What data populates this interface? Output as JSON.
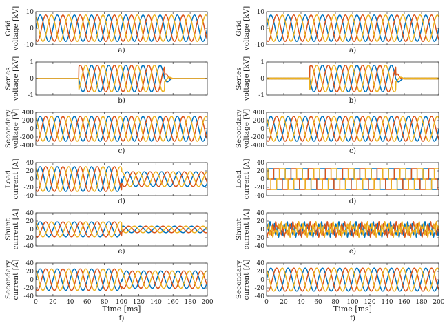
{
  "figure": {
    "x_label": "Time [ms]",
    "x_ticks": [
      "0",
      "20",
      "40",
      "60",
      "80",
      "100",
      "120",
      "140",
      "160",
      "180",
      "200"
    ],
    "colors": {
      "phase_a": "#0072BD",
      "phase_b": "#D95319",
      "phase_c": "#EDB120"
    }
  },
  "chart_data": [
    {
      "type": "line",
      "column": "left",
      "row": 0,
      "caption": "a)",
      "ylabel": [
        "Grid",
        "voltage [kV]"
      ],
      "xlim": [
        0,
        200
      ],
      "ylim": [
        -10,
        10
      ],
      "y_ticks": [
        "10",
        "0",
        "-10"
      ],
      "series": [
        {
          "waveform": "sine",
          "frequency_hz": 50,
          "phase_shift_deg": [
            0,
            -120,
            120
          ],
          "segments": [
            {
              "t": [
                0,
                200
              ],
              "amplitude": 8
            }
          ]
        }
      ]
    },
    {
      "type": "line",
      "column": "left",
      "row": 1,
      "caption": "b)",
      "ylabel": [
        "Series",
        "voltage [kV]"
      ],
      "xlim": [
        0,
        200
      ],
      "ylim": [
        -1,
        1
      ],
      "y_ticks": [
        "1",
        "0",
        "-1"
      ],
      "series": [
        {
          "waveform": "sine",
          "frequency_hz": 50,
          "phase_shift_deg": [
            0,
            -120,
            120
          ],
          "segments": [
            {
              "t": [
                0,
                50
              ],
              "amplitude": 0
            },
            {
              "t": [
                50,
                150
              ],
              "amplitude": 0.8
            },
            {
              "t": [
                150,
                160
              ],
              "amplitude": 0.2,
              "decay_ms": 3
            },
            {
              "t": [
                160,
                200
              ],
              "amplitude": 0
            }
          ]
        }
      ]
    },
    {
      "type": "line",
      "column": "left",
      "row": 2,
      "caption": "c)",
      "ylabel": [
        "Secondary",
        "voltage [V]"
      ],
      "xlim": [
        0,
        200
      ],
      "ylim": [
        -400,
        400
      ],
      "y_ticks": [
        "400",
        "200",
        "0",
        "-200",
        "-400"
      ],
      "series": [
        {
          "waveform": "sine",
          "frequency_hz": 50,
          "phase_shift_deg": [
            0,
            -120,
            120
          ],
          "segments": [
            {
              "t": [
                0,
                200
              ],
              "amplitude": 300
            }
          ]
        }
      ]
    },
    {
      "type": "line",
      "column": "left",
      "row": 3,
      "caption": "d)",
      "ylabel": [
        "Load",
        "current [A]"
      ],
      "xlim": [
        0,
        200
      ],
      "ylim": [
        -40,
        40
      ],
      "y_ticks": [
        "40",
        "20",
        "0",
        "-20",
        "-40"
      ],
      "series": [
        {
          "waveform": "sine",
          "frequency_hz": 50,
          "phase_shift_deg": [
            0,
            -120,
            120
          ],
          "segments": [
            {
              "t": [
                0,
                100
              ],
              "amplitude": 30
            },
            {
              "t": [
                100,
                200
              ],
              "amplitude": 18,
              "phase_jump_deg": -30
            }
          ]
        }
      ]
    },
    {
      "type": "line",
      "column": "left",
      "row": 4,
      "caption": "e)",
      "ylabel": [
        "Shunt",
        "current [A]"
      ],
      "xlim": [
        0,
        200
      ],
      "ylim": [
        -40,
        40
      ],
      "y_ticks": [
        "40",
        "20",
        "0",
        "-20",
        "-40"
      ],
      "series": [
        {
          "waveform": "sine",
          "frequency_hz": 50,
          "phase_shift_deg": [
            0,
            -120,
            120
          ],
          "segments": [
            {
              "t": [
                0,
                100
              ],
              "amplitude": 18
            },
            {
              "t": [
                100,
                200
              ],
              "amplitude": 8,
              "phase_jump_deg": 60
            }
          ]
        }
      ]
    },
    {
      "type": "line",
      "column": "left",
      "row": 5,
      "caption": "f)",
      "ylabel": [
        "Secondary",
        "current [A]"
      ],
      "xlim": [
        0,
        200
      ],
      "ylim": [
        -40,
        40
      ],
      "y_ticks": [
        "40",
        "20",
        "0",
        "-20",
        "-40"
      ],
      "series": [
        {
          "waveform": "sine",
          "frequency_hz": 50,
          "phase_shift_deg": [
            0,
            -120,
            120
          ],
          "segments": [
            {
              "t": [
                0,
                100
              ],
              "amplitude": 26
            },
            {
              "t": [
                100,
                200
              ],
              "amplitude": 21,
              "phase_jump_deg": -15
            }
          ]
        }
      ]
    },
    {
      "type": "line",
      "column": "right",
      "row": 0,
      "caption": "a)",
      "ylabel": [
        "Grid",
        "voltage [kV]"
      ],
      "xlim": [
        0,
        200
      ],
      "ylim": [
        -10,
        10
      ],
      "y_ticks": [
        "10",
        "0",
        "-10"
      ],
      "series": [
        {
          "waveform": "sine",
          "frequency_hz": 50,
          "phase_shift_deg": [
            0,
            -120,
            120
          ],
          "segments": [
            {
              "t": [
                0,
                200
              ],
              "amplitude": 8
            }
          ]
        }
      ]
    },
    {
      "type": "line",
      "column": "right",
      "row": 1,
      "caption": "b)",
      "ylabel": [
        "Series",
        "voltage [kV]"
      ],
      "xlim": [
        0,
        200
      ],
      "ylim": [
        -1,
        1
      ],
      "y_ticks": [
        "1",
        "0",
        "-1"
      ],
      "series": [
        {
          "waveform": "sine",
          "frequency_hz": 50,
          "phase_shift_deg": [
            0,
            -120,
            120
          ],
          "ripple_amplitude": 0.03,
          "segments": [
            {
              "t": [
                0,
                50
              ],
              "amplitude": 0
            },
            {
              "t": [
                50,
                150
              ],
              "amplitude": 0.8
            },
            {
              "t": [
                150,
                160
              ],
              "amplitude": 0.2,
              "decay_ms": 3
            },
            {
              "t": [
                160,
                200
              ],
              "amplitude": 0
            }
          ]
        }
      ]
    },
    {
      "type": "line",
      "column": "right",
      "row": 2,
      "caption": "c)",
      "ylabel": [
        "Secondary",
        "voltage [V]"
      ],
      "xlim": [
        0,
        200
      ],
      "ylim": [
        -400,
        400
      ],
      "y_ticks": [
        "400",
        "200",
        "0",
        "-200",
        "-400"
      ],
      "series": [
        {
          "waveform": "sine",
          "frequency_hz": 50,
          "phase_shift_deg": [
            0,
            -120,
            120
          ],
          "segments": [
            {
              "t": [
                0,
                200
              ],
              "amplitude": 300
            }
          ]
        }
      ]
    },
    {
      "type": "line",
      "column": "right",
      "row": 3,
      "caption": "d)",
      "ylabel": [
        "Load",
        "current [A]"
      ],
      "xlim": [
        0,
        200
      ],
      "ylim": [
        -40,
        40
      ],
      "y_ticks": [
        "40",
        "20",
        "0",
        "-20",
        "-40"
      ],
      "series": [
        {
          "waveform": "six-step",
          "frequency_hz": 50,
          "phase_shift_deg": [
            0,
            -120,
            120
          ],
          "segments": [
            {
              "t": [
                0,
                200
              ],
              "amplitude": 25
            }
          ]
        }
      ]
    },
    {
      "type": "line",
      "column": "right",
      "row": 4,
      "caption": "e)",
      "ylabel": [
        "Shunt",
        "current [A]"
      ],
      "xlim": [
        0,
        200
      ],
      "ylim": [
        -40,
        40
      ],
      "y_ticks": [
        "40",
        "20",
        "0",
        "-20",
        "-40"
      ],
      "series": [
        {
          "waveform": "harmonic",
          "frequency_hz": 50,
          "phase_shift_deg": [
            0,
            -120,
            120
          ],
          "segments": [
            {
              "t": [
                0,
                200
              ],
              "amplitude": 15
            }
          ]
        }
      ]
    },
    {
      "type": "line",
      "column": "right",
      "row": 5,
      "caption": "f)",
      "ylabel": [
        "Secondary",
        "current [A]"
      ],
      "xlim": [
        0,
        200
      ],
      "ylim": [
        -40,
        40
      ],
      "y_ticks": [
        "40",
        "20",
        "0",
        "-20",
        "-40"
      ],
      "series": [
        {
          "waveform": "sine",
          "frequency_hz": 50,
          "phase_shift_deg": [
            0,
            -120,
            120
          ],
          "segments": [
            {
              "t": [
                0,
                200
              ],
              "amplitude": 28
            }
          ]
        }
      ]
    }
  ]
}
